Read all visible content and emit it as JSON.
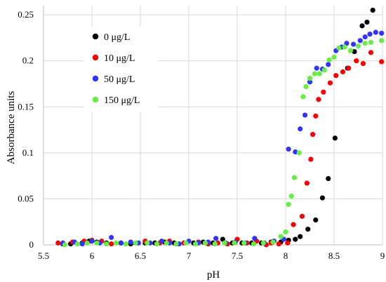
{
  "chart_data": {
    "type": "scatter",
    "xlabel": "pH",
    "ylabel": "Absorbance units",
    "xlim": [
      5.5,
      9
    ],
    "ylim": [
      0,
      0.26
    ],
    "x_ticks": [
      "5.5",
      "6",
      "6.5",
      "7",
      "7.5",
      "8",
      "8.5",
      "9"
    ],
    "y_ticks": [
      "0",
      "0.05",
      "0.1",
      "0.15",
      "0.2",
      "0.25"
    ],
    "grid": true,
    "legend_position": "top-left",
    "series": [
      {
        "name": "0 μg/L",
        "color": "#000000",
        "x": [
          5.7,
          5.78,
          5.9,
          5.97,
          6.05,
          6.15,
          6.3,
          6.4,
          6.55,
          6.65,
          6.75,
          6.85,
          6.95,
          7.05,
          7.15,
          7.25,
          7.35,
          7.45,
          7.55,
          7.65,
          7.75,
          7.85,
          7.95,
          8.03,
          8.1,
          8.15,
          8.23,
          8.31,
          8.38,
          8.44,
          8.51,
          8.64,
          8.71,
          8.79,
          8.84,
          8.9
        ],
        "y": [
          0.001,
          0.001,
          0.002,
          0.004,
          0.003,
          0.002,
          0.002,
          0.001,
          0.002,
          0.002,
          0.003,
          0.002,
          0.002,
          0.002,
          0.003,
          0.002,
          0.006,
          0.002,
          0.002,
          0.002,
          0.002,
          0.003,
          0.003,
          0.005,
          0.006,
          0.009,
          0.017,
          0.027,
          0.051,
          0.072,
          0.116,
          0.192,
          0.21,
          0.238,
          0.242,
          0.255
        ]
      },
      {
        "name": "10 μg/L",
        "color": "#ff0000",
        "x": [
          5.65,
          5.8,
          5.92,
          6.0,
          6.1,
          6.2,
          6.3,
          6.45,
          6.55,
          6.7,
          6.8,
          6.95,
          7.1,
          7.2,
          7.3,
          7.4,
          7.5,
          7.6,
          7.7,
          7.8,
          7.85,
          7.93,
          8.02,
          8.08,
          8.17,
          8.22,
          8.26,
          8.28,
          8.31,
          8.34,
          8.39,
          8.46,
          8.52,
          8.59,
          8.65,
          8.73,
          8.8,
          8.88,
          8.99
        ],
        "y": [
          0.002,
          0.003,
          0.004,
          0.005,
          0.004,
          0.001,
          0.002,
          0.002,
          0.004,
          0.002,
          0.004,
          0.002,
          0.003,
          0.001,
          0.002,
          0.001,
          0.006,
          0.002,
          0.004,
          0.0,
          0.002,
          0.001,
          0.002,
          0.022,
          0.031,
          0.067,
          0.093,
          0.12,
          0.14,
          0.158,
          0.166,
          0.176,
          0.184,
          0.188,
          0.192,
          0.2,
          0.197,
          0.209,
          0.199
        ]
      },
      {
        "name": "50 μg/L",
        "color": "#3333ff",
        "x": [
          5.7,
          5.82,
          5.9,
          6.0,
          6.08,
          6.2,
          6.3,
          6.4,
          6.48,
          6.6,
          6.72,
          6.8,
          6.9,
          7.0,
          7.1,
          7.2,
          7.28,
          7.38,
          7.48,
          7.58,
          7.68,
          7.78,
          7.88,
          7.98,
          8.03,
          8.1,
          8.15,
          8.2,
          8.25,
          8.32,
          8.38,
          8.44,
          8.52,
          8.58,
          8.63,
          8.7,
          8.77,
          8.82,
          8.87,
          8.93,
          8.99
        ],
        "y": [
          0.002,
          0.003,
          0.001,
          0.004,
          0.002,
          0.008,
          0.002,
          0.003,
          0.002,
          0.002,
          0.004,
          0.002,
          0.001,
          0.004,
          0.002,
          0.003,
          0.007,
          0.002,
          0.003,
          0.002,
          0.007,
          0.002,
          0.004,
          0.006,
          0.104,
          0.101,
          0.126,
          0.141,
          0.177,
          0.192,
          0.191,
          0.196,
          0.211,
          0.215,
          0.219,
          0.218,
          0.222,
          0.226,
          0.229,
          0.231,
          0.23
        ]
      },
      {
        "name": "150 μg/L",
        "color": "#66ee44",
        "x": [
          5.72,
          5.85,
          5.95,
          6.05,
          6.15,
          6.25,
          6.35,
          6.45,
          6.57,
          6.67,
          6.77,
          6.87,
          6.97,
          7.07,
          7.17,
          7.27,
          7.37,
          7.47,
          7.57,
          7.67,
          7.77,
          7.87,
          7.95,
          8.0,
          8.03,
          8.06,
          8.09,
          8.14,
          8.18,
          8.21,
          8.25,
          8.3,
          8.35,
          8.4,
          8.45,
          8.5,
          8.55,
          8.61,
          8.67,
          8.75,
          8.82,
          8.88,
          8.99
        ],
        "y": [
          0.0,
          0.001,
          0.002,
          0.002,
          0.001,
          0.002,
          0.001,
          0.002,
          0.002,
          0.001,
          0.002,
          0.001,
          0.002,
          0.001,
          0.002,
          0.001,
          0.002,
          0.002,
          0.002,
          0.001,
          0.002,
          0.003,
          0.009,
          0.014,
          0.044,
          0.053,
          0.073,
          0.1,
          0.161,
          0.172,
          0.181,
          0.186,
          0.186,
          0.19,
          0.201,
          0.204,
          0.214,
          0.215,
          0.211,
          0.216,
          0.219,
          0.22,
          0.222
        ]
      }
    ]
  }
}
